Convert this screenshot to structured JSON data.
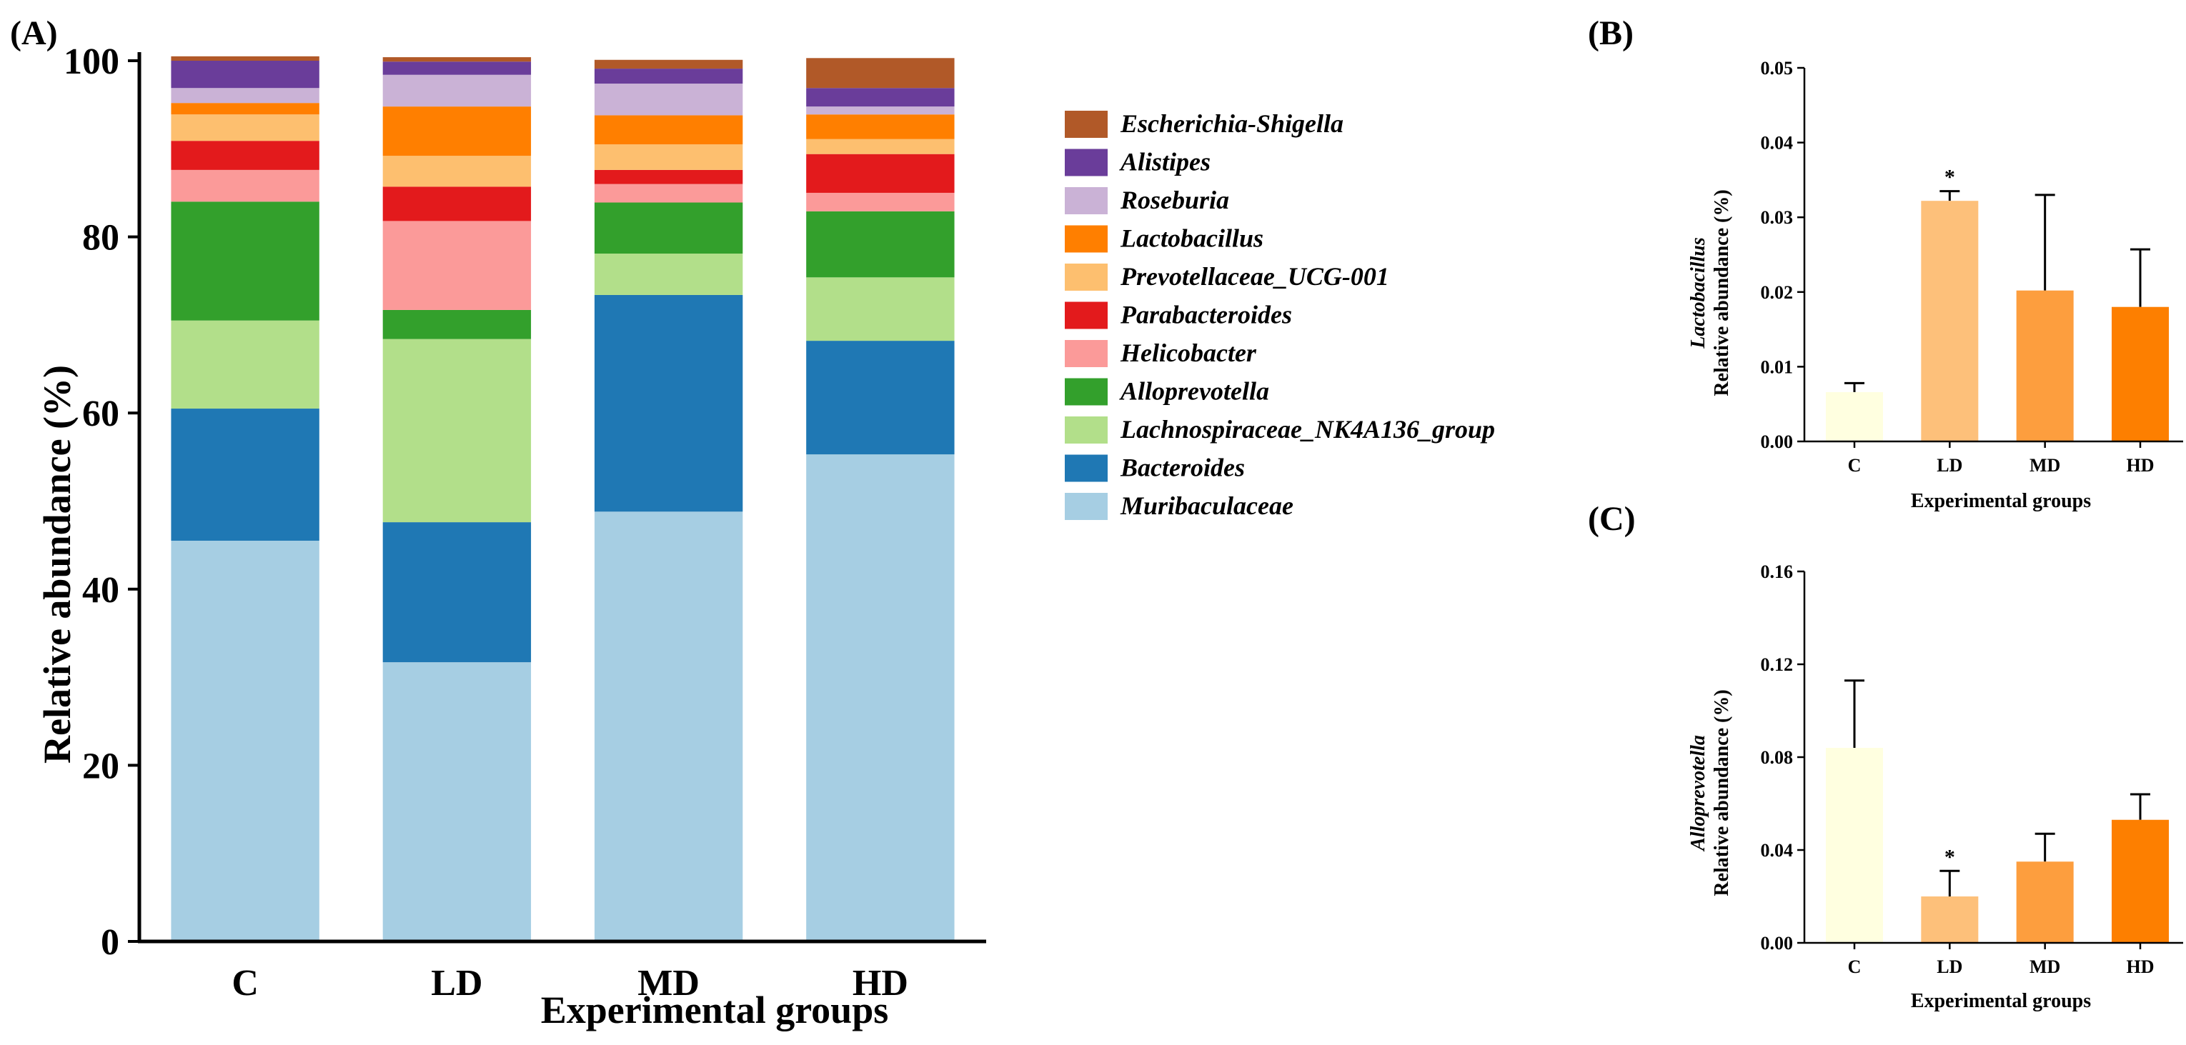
{
  "panels": {
    "A": {
      "letter": "(A)"
    },
    "B": {
      "letter": "(B)"
    },
    "C": {
      "letter": "(C)"
    }
  },
  "chart_data": [
    {
      "id": "A",
      "type": "bar",
      "stacked": true,
      "categories": [
        "C",
        "LD",
        "MD",
        "HD"
      ],
      "xlabel": "Experimental groups",
      "ylabel": "Relative abundance (%)",
      "ylim": [
        0,
        100
      ],
      "yticks": [
        0,
        20,
        40,
        60,
        80,
        100
      ],
      "legend_position": "right",
      "series": [
        {
          "name": "Muribaculaceae",
          "color": "#a6cee3",
          "values": [
            45.5,
            31.7,
            48.8,
            55.3
          ]
        },
        {
          "name": "Bacteroides",
          "color": "#1f78b4",
          "values": [
            15.0,
            15.9,
            24.6,
            12.9
          ]
        },
        {
          "name": "Lachnospiraceae_NK4A136_group",
          "color": "#b2df8a",
          "values": [
            10.0,
            20.8,
            4.7,
            7.2
          ]
        },
        {
          "name": "Alloprevotella",
          "color": "#33a02c",
          "values": [
            13.5,
            3.3,
            5.8,
            7.5
          ]
        },
        {
          "name": "Helicobacter",
          "color": "#fb9a99",
          "values": [
            3.6,
            10.1,
            2.1,
            2.1
          ]
        },
        {
          "name": "Parabacteroides",
          "color": "#e31a1c",
          "values": [
            3.3,
            3.9,
            1.6,
            4.4
          ]
        },
        {
          "name": "Prevotellaceae_UCG-001",
          "color": "#fdbf6f",
          "values": [
            3.0,
            3.5,
            2.9,
            1.7
          ]
        },
        {
          "name": "Lactobacillus",
          "color": "#ff7f00",
          "values": [
            1.3,
            5.6,
            3.3,
            2.8
          ]
        },
        {
          "name": "Roseburia",
          "color": "#cab2d6",
          "values": [
            1.7,
            3.6,
            3.6,
            0.9
          ]
        },
        {
          "name": "Alistipes",
          "color": "#6a3d9a",
          "values": [
            3.1,
            1.5,
            1.7,
            2.1
          ]
        },
        {
          "name": "Escherichia-Shigella",
          "color": "#b15928",
          "values": [
            0.5,
            0.5,
            1.0,
            3.4
          ]
        }
      ]
    },
    {
      "id": "B",
      "type": "bar",
      "categories": [
        "C",
        "LD",
        "MD",
        "HD"
      ],
      "values": [
        0.0066,
        0.0322,
        0.0202,
        0.018
      ],
      "errors": [
        0.0012,
        0.0013,
        0.0128,
        0.0077
      ],
      "colors": [
        "#ffffe0",
        "#fdc07a",
        "#fd9e3e",
        "#fd7f00"
      ],
      "significance": [
        "",
        "*",
        "",
        ""
      ],
      "xlabel": "Experimental groups",
      "ylabel_italic": "Lactobacillus",
      "ylabel": "Relative abundance (%)",
      "ylim": [
        0,
        0.05
      ],
      "yticks": [
        "0.00",
        "0.01",
        "0.02",
        "0.03",
        "0.04",
        "0.05"
      ]
    },
    {
      "id": "C",
      "type": "bar",
      "categories": [
        "C",
        "LD",
        "MD",
        "HD"
      ],
      "values": [
        0.084,
        0.02,
        0.035,
        0.053
      ],
      "errors": [
        0.029,
        0.011,
        0.012,
        0.011
      ],
      "colors": [
        "#ffffe0",
        "#fdc07a",
        "#fd9e3e",
        "#fd7f00"
      ],
      "significance": [
        "",
        "*",
        "",
        ""
      ],
      "xlabel": "Experimental groups",
      "ylabel_italic": "Alloprevotella",
      "ylabel": "Relative abundance (%)",
      "ylim": [
        0,
        0.16
      ],
      "yticks": [
        "0.00",
        "0.04",
        "0.08",
        "0.12",
        "0.16"
      ]
    }
  ]
}
